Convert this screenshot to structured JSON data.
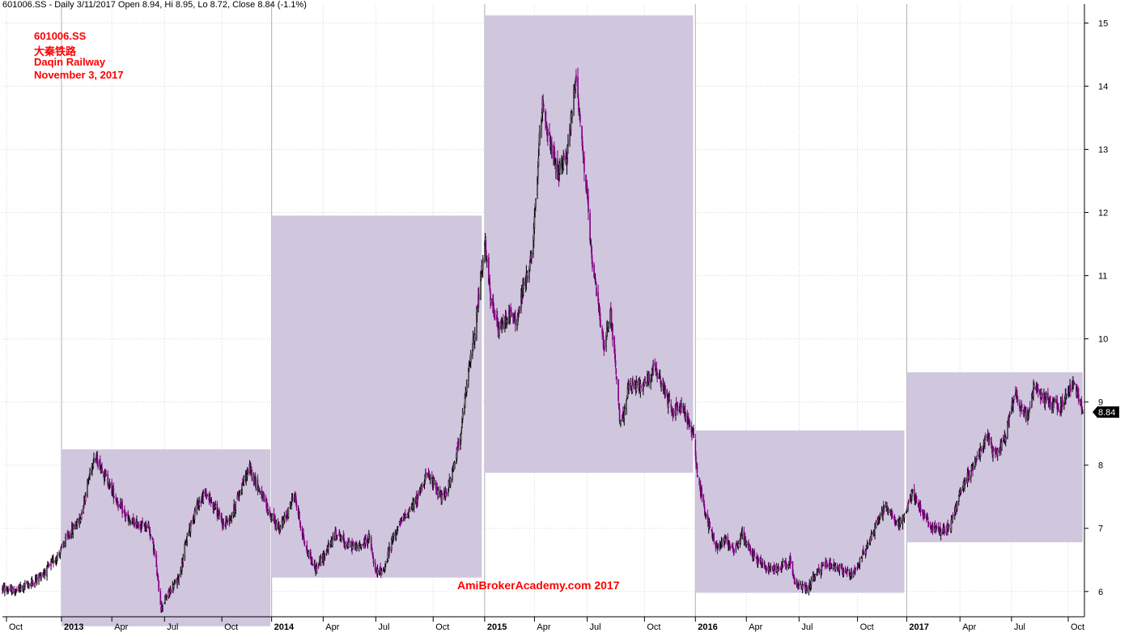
{
  "header": {
    "text": "601006.SS - Daily 3/11/2017 Open 8.94, Hi 8.95, Lo 8.72, Close 8.84 (-1.1%)"
  },
  "annotation": {
    "line1": "601006.SS",
    "line2": "大秦铁路",
    "line3": "Daqin Railway",
    "line4": "November 3, 2017"
  },
  "watermark": "AmiBrokerAcademy.com  2017",
  "last_price_label": "8.84",
  "colors": {
    "range_box": "#d0c6de",
    "candle_up": "#000000",
    "candle_down": "#800080",
    "label_red": "#ff0000",
    "grid": "#d8d8d8",
    "year_line": "#b0b0b0",
    "price_tag_bg": "#000000"
  },
  "chart_data": {
    "type": "candlestick",
    "y_axis": {
      "side": "right",
      "ticks": [
        6,
        7,
        8,
        9,
        10,
        11,
        12,
        13,
        14,
        15
      ],
      "range": [
        5.6,
        15.3
      ]
    },
    "x_axis": {
      "range": [
        "2012-09-24",
        "2017-11-06"
      ],
      "tick_labels": [
        {
          "date": "2012-10-01",
          "label": "Oct",
          "year": false
        },
        {
          "date": "2013-01-04",
          "label": "2013",
          "year": true
        },
        {
          "date": "2013-04-01",
          "label": "Apr",
          "year": false
        },
        {
          "date": "2013-07-01",
          "label": "Jul",
          "year": false
        },
        {
          "date": "2013-10-08",
          "label": "Oct",
          "year": false
        },
        {
          "date": "2014-01-02",
          "label": "2014",
          "year": true
        },
        {
          "date": "2014-04-01",
          "label": "Apr",
          "year": false
        },
        {
          "date": "2014-07-01",
          "label": "Jul",
          "year": false
        },
        {
          "date": "2014-10-08",
          "label": "Oct",
          "year": false
        },
        {
          "date": "2015-01-05",
          "label": "2015",
          "year": true
        },
        {
          "date": "2015-04-01",
          "label": "Apr",
          "year": false
        },
        {
          "date": "2015-07-01",
          "label": "Jul",
          "year": false
        },
        {
          "date": "2015-10-08",
          "label": "Oct",
          "year": false
        },
        {
          "date": "2016-01-04",
          "label": "2016",
          "year": true
        },
        {
          "date": "2016-04-01",
          "label": "Apr",
          "year": false
        },
        {
          "date": "2016-07-01",
          "label": "Jul",
          "year": false
        },
        {
          "date": "2016-10-10",
          "label": "Oct",
          "year": false
        },
        {
          "date": "2017-01-03",
          "label": "2017",
          "year": true
        },
        {
          "date": "2017-04-05",
          "label": "Apr",
          "year": false
        },
        {
          "date": "2017-07-03",
          "label": "Jul",
          "year": false
        },
        {
          "date": "2017-10-09",
          "label": "Oct",
          "year": false
        }
      ]
    },
    "yearly_ranges": [
      {
        "year": "2013",
        "start": "2013-01-04",
        "end": "2013-12-31",
        "high": 8.25,
        "low": 5.45
      },
      {
        "year": "2014",
        "start": "2014-01-02",
        "end": "2014-12-31",
        "high": 11.95,
        "low": 6.22
      },
      {
        "year": "2015",
        "start": "2015-01-05",
        "end": "2015-12-31",
        "high": 15.12,
        "low": 7.88
      },
      {
        "year": "2016",
        "start": "2016-01-04",
        "end": "2016-12-30",
        "high": 8.55,
        "low": 5.98
      },
      {
        "year": "2017",
        "start": "2017-01-03",
        "end": "2017-11-03",
        "high": 9.47,
        "low": 6.78
      }
    ],
    "price_path": [
      [
        "2012-09-24",
        6.05
      ],
      [
        "2012-10-15",
        6.0
      ],
      [
        "2012-11-15",
        6.15
      ],
      [
        "2012-12-10",
        6.35
      ],
      [
        "2012-12-31",
        6.6
      ],
      [
        "2013-01-20",
        6.95
      ],
      [
        "2013-02-05",
        7.15
      ],
      [
        "2013-02-18",
        7.7
      ],
      [
        "2013-03-01",
        8.15
      ],
      [
        "2013-03-15",
        7.95
      ],
      [
        "2013-04-01",
        7.6
      ],
      [
        "2013-04-15",
        7.35
      ],
      [
        "2013-05-01",
        7.1
      ],
      [
        "2013-05-20",
        7.05
      ],
      [
        "2013-06-03",
        7.05
      ],
      [
        "2013-06-13",
        6.65
      ],
      [
        "2013-06-25",
        5.75
      ],
      [
        "2013-07-10",
        6.0
      ],
      [
        "2013-07-25",
        6.2
      ],
      [
        "2013-08-10",
        6.9
      ],
      [
        "2013-08-25",
        7.35
      ],
      [
        "2013-09-10",
        7.55
      ],
      [
        "2013-09-25",
        7.35
      ],
      [
        "2013-10-10",
        7.05
      ],
      [
        "2013-10-25",
        7.2
      ],
      [
        "2013-11-10",
        7.65
      ],
      [
        "2013-11-25",
        7.95
      ],
      [
        "2013-12-10",
        7.65
      ],
      [
        "2013-12-31",
        7.2
      ],
      [
        "2014-01-15",
        7.0
      ],
      [
        "2014-01-28",
        7.2
      ],
      [
        "2014-02-10",
        7.55
      ],
      [
        "2014-03-01",
        6.7
      ],
      [
        "2014-03-20",
        6.35
      ],
      [
        "2014-04-10",
        6.7
      ],
      [
        "2014-04-25",
        6.95
      ],
      [
        "2014-05-10",
        6.75
      ],
      [
        "2014-06-01",
        6.7
      ],
      [
        "2014-06-20",
        6.85
      ],
      [
        "2014-06-30",
        6.3
      ],
      [
        "2014-07-15",
        6.35
      ],
      [
        "2014-07-30",
        6.85
      ],
      [
        "2014-08-20",
        7.2
      ],
      [
        "2014-09-10",
        7.45
      ],
      [
        "2014-09-25",
        7.85
      ],
      [
        "2014-10-10",
        7.7
      ],
      [
        "2014-10-25",
        7.45
      ],
      [
        "2014-11-10",
        7.85
      ],
      [
        "2014-11-25",
        8.55
      ],
      [
        "2014-12-10",
        9.6
      ],
      [
        "2014-12-20",
        10.2
      ],
      [
        "2014-12-31",
        11.1
      ],
      [
        "2015-01-06",
        11.5
      ],
      [
        "2015-01-15",
        10.6
      ],
      [
        "2015-01-30",
        10.1
      ],
      [
        "2015-02-15",
        10.4
      ],
      [
        "2015-03-01",
        10.25
      ],
      [
        "2015-03-15",
        10.9
      ],
      [
        "2015-03-28",
        11.3
      ],
      [
        "2015-04-08",
        12.9
      ],
      [
        "2015-04-15",
        13.8
      ],
      [
        "2015-04-25",
        13.2
      ],
      [
        "2015-05-10",
        12.6
      ],
      [
        "2015-05-25",
        12.8
      ],
      [
        "2015-06-05",
        13.6
      ],
      [
        "2015-06-12",
        14.2
      ],
      [
        "2015-06-22",
        13.1
      ],
      [
        "2015-07-01",
        12.2
      ],
      [
        "2015-07-10",
        11.1
      ],
      [
        "2015-07-20",
        10.6
      ],
      [
        "2015-07-30",
        9.8
      ],
      [
        "2015-08-10",
        10.5
      ],
      [
        "2015-08-20",
        9.4
      ],
      [
        "2015-08-27",
        8.6
      ],
      [
        "2015-09-10",
        9.2
      ],
      [
        "2015-09-25",
        9.25
      ],
      [
        "2015-10-10",
        9.3
      ],
      [
        "2015-10-25",
        9.55
      ],
      [
        "2015-11-10",
        9.2
      ],
      [
        "2015-11-25",
        8.85
      ],
      [
        "2015-12-10",
        8.95
      ],
      [
        "2015-12-31",
        8.5
      ],
      [
        "2016-01-10",
        7.7
      ],
      [
        "2016-01-25",
        7.1
      ],
      [
        "2016-02-10",
        6.7
      ],
      [
        "2016-02-25",
        6.85
      ],
      [
        "2016-03-10",
        6.65
      ],
      [
        "2016-03-25",
        6.9
      ],
      [
        "2016-04-15",
        6.55
      ],
      [
        "2016-05-10",
        6.35
      ],
      [
        "2016-05-30",
        6.4
      ],
      [
        "2016-06-15",
        6.5
      ],
      [
        "2016-06-25",
        6.1
      ],
      [
        "2016-07-15",
        6.05
      ],
      [
        "2016-08-01",
        6.3
      ],
      [
        "2016-08-20",
        6.45
      ],
      [
        "2016-09-10",
        6.35
      ],
      [
        "2016-09-30",
        6.25
      ],
      [
        "2016-10-15",
        6.5
      ],
      [
        "2016-10-30",
        6.8
      ],
      [
        "2016-11-15",
        7.15
      ],
      [
        "2016-11-30",
        7.35
      ],
      [
        "2016-12-20",
        7.05
      ],
      [
        "2016-12-31",
        7.2
      ],
      [
        "2017-01-12",
        7.55
      ],
      [
        "2017-01-25",
        7.35
      ],
      [
        "2017-02-10",
        7.05
      ],
      [
        "2017-03-01",
        6.95
      ],
      [
        "2017-03-20",
        7.05
      ],
      [
        "2017-04-05",
        7.55
      ],
      [
        "2017-04-20",
        7.85
      ],
      [
        "2017-05-10",
        8.25
      ],
      [
        "2017-05-20",
        8.45
      ],
      [
        "2017-06-05",
        8.15
      ],
      [
        "2017-06-20",
        8.4
      ],
      [
        "2017-07-10",
        9.15
      ],
      [
        "2017-07-20",
        8.9
      ],
      [
        "2017-08-01",
        8.75
      ],
      [
        "2017-08-10",
        9.25
      ],
      [
        "2017-08-25",
        9.1
      ],
      [
        "2017-09-10",
        9.0
      ],
      [
        "2017-09-25",
        8.9
      ],
      [
        "2017-10-10",
        9.15
      ],
      [
        "2017-10-18",
        9.35
      ],
      [
        "2017-10-26",
        9.1
      ],
      [
        "2017-11-03",
        8.84
      ]
    ],
    "last_close": 8.84,
    "grid": true
  }
}
